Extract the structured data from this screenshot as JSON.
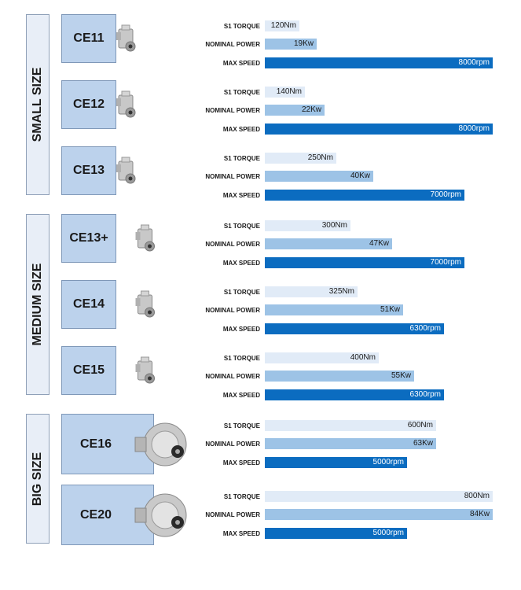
{
  "chart_data": {
    "type": "bar",
    "metrics": [
      "S1 TORQUE",
      "NOMINAL POWER",
      "MAX SPEED"
    ],
    "units": [
      "Nm",
      "Kw",
      "rpm"
    ],
    "colors": {
      "torque": "#e1ebf7",
      "power": "#9dc3e6",
      "speed": "#0b6cc0"
    },
    "groups": [
      {
        "label": "SMALL SIZE",
        "models": [
          {
            "name": "CE11",
            "torque": 120,
            "power": 19,
            "speed": 8000
          },
          {
            "name": "CE12",
            "torque": 140,
            "power": 22,
            "speed": 8000
          },
          {
            "name": "CE13",
            "torque": 250,
            "power": 40,
            "speed": 7000
          }
        ]
      },
      {
        "label": "MEDIUM SIZE",
        "models": [
          {
            "name": "CE13+",
            "torque": 300,
            "power": 47,
            "speed": 7000
          },
          {
            "name": "CE14",
            "torque": 325,
            "power": 51,
            "speed": 6300
          },
          {
            "name": "CE15",
            "torque": 400,
            "power": 55,
            "speed": 6300
          }
        ]
      },
      {
        "label": "BIG SIZE",
        "models": [
          {
            "name": "CE16",
            "torque": 600,
            "power": 63,
            "speed": 5000
          },
          {
            "name": "CE20",
            "torque": 800,
            "power": 84,
            "speed": 5000
          }
        ]
      }
    ]
  }
}
